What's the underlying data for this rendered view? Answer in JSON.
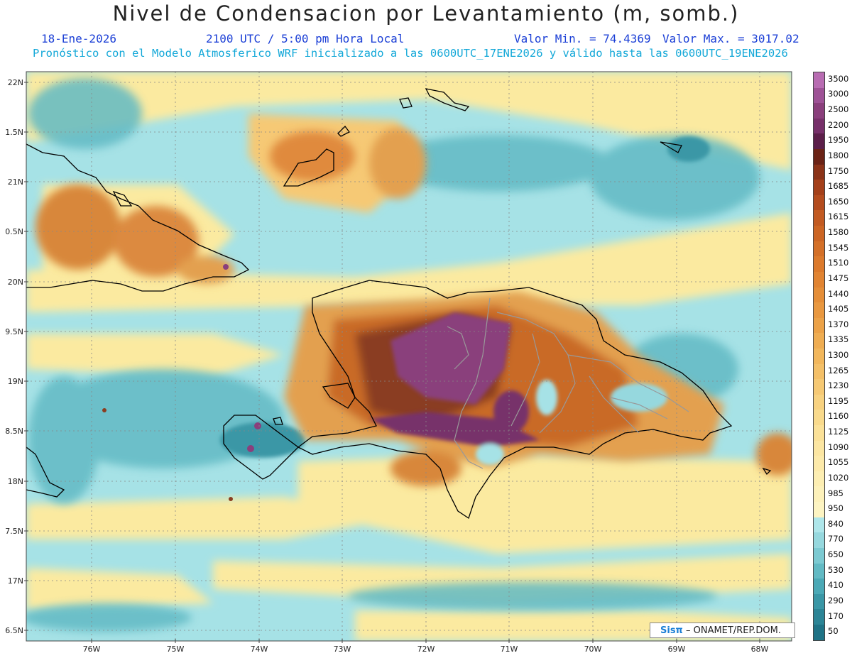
{
  "header": {
    "title": "Nivel de Condensacion por Levantamiento (m, somb.)",
    "date": "18-Ene-2026",
    "time": "2100 UTC / 5:00 pm Hora Local",
    "min_label": "Valor Min. = 74.4369",
    "max_label": "Valor Max. = 3017.02",
    "model_line": "Pronóstico con el Modelo Atmosferico WRF inicializado a las 0600UTC_17ENE2026 y válido hasta las  0600UTC_19ENE2026"
  },
  "map": {
    "lon_labels": [
      "76W",
      "75W",
      "74W",
      "73W",
      "72W",
      "71W",
      "70W",
      "69W",
      "68W"
    ],
    "lat_labels": [
      "22N",
      "1.5N",
      "21N",
      "0.5N",
      "20N",
      "9.5N",
      "19N",
      "8.5N",
      "18N",
      "7.5N",
      "17N",
      "6.5N"
    ],
    "colors": {
      "ocean_low": "#5fb6c2",
      "ocean_mid": "#a6e2e6",
      "yellow": "#fbeaa0",
      "orange": "#d8873b",
      "brown": "#8a3d20",
      "purple": "#8a3f7c"
    }
  },
  "colorbar": {
    "labels": [
      "3500",
      "3000",
      "2500",
      "2200",
      "1950",
      "1800",
      "1750",
      "1685",
      "1650",
      "1615",
      "1580",
      "1545",
      "1510",
      "1475",
      "1440",
      "1405",
      "1370",
      "1335",
      "1300",
      "1265",
      "1230",
      "1195",
      "1160",
      "1125",
      "1090",
      "1055",
      "1020",
      "985",
      "950",
      "840",
      "770",
      "650",
      "530",
      "410",
      "290",
      "170",
      "50"
    ],
    "colors": [
      "#b86cb2",
      "#9e5296",
      "#8a3f7c",
      "#77306a",
      "#5c1f4a",
      "#6b2316",
      "#8b3318",
      "#a4401a",
      "#b44c1e",
      "#c25a22",
      "#cc6524",
      "#d47028",
      "#dc7a2c",
      "#e18432",
      "#e58e38",
      "#e99840",
      "#eca248",
      "#efad52",
      "#f2b75c",
      "#f4c068",
      "#f6c974",
      "#f8d280",
      "#f9da8c",
      "#fbe198",
      "#fce6a2",
      "#fdeaaa",
      "#fdeeb2",
      "#fdf1ba",
      "#fdf4c2",
      "#aee6ea",
      "#96d8de",
      "#7ccad2",
      "#62bac4",
      "#4ba9b6",
      "#3a97a6",
      "#2c8596",
      "#1f7386"
    ]
  },
  "credit": {
    "brand": "Sisπ",
    "text": "– ONAMET/REP.DOM."
  }
}
